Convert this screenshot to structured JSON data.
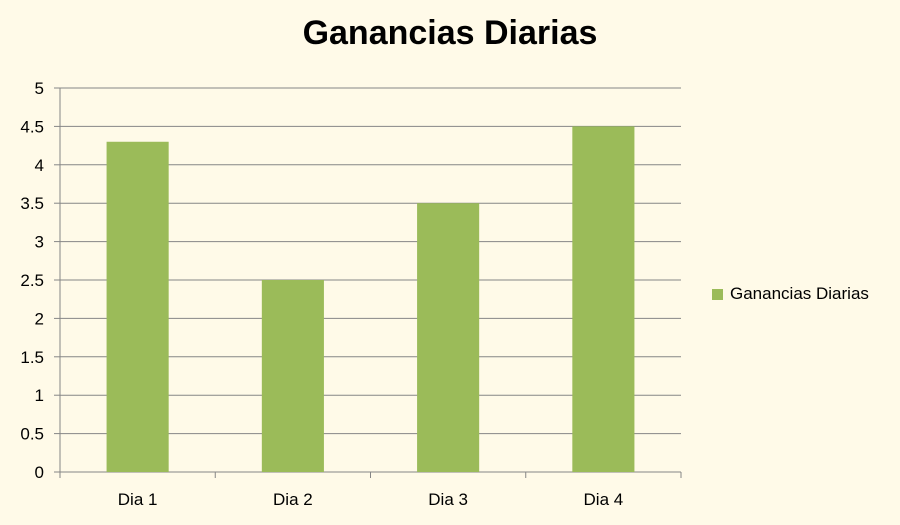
{
  "colors": {
    "background": "#FFFAE8",
    "bar": "#9BBB59",
    "grid": "#868686",
    "axis": "#868686",
    "text": "#000000"
  },
  "chart_data": {
    "type": "bar",
    "title": "Ganancias Diarias",
    "categories": [
      "Dia 1",
      "Dia 2",
      "Dia 3",
      "Dia 4"
    ],
    "series": [
      {
        "name": "Ganancias Diarias",
        "values": [
          4.3,
          2.5,
          3.5,
          4.5
        ]
      }
    ],
    "ylim": [
      0,
      5
    ],
    "ytick_step": 0.5,
    "yticks": [
      "0",
      "0.5",
      "1",
      "1.5",
      "2",
      "2.5",
      "3",
      "3.5",
      "4",
      "4.5",
      "5"
    ],
    "grid": true,
    "legend_position": "right"
  }
}
